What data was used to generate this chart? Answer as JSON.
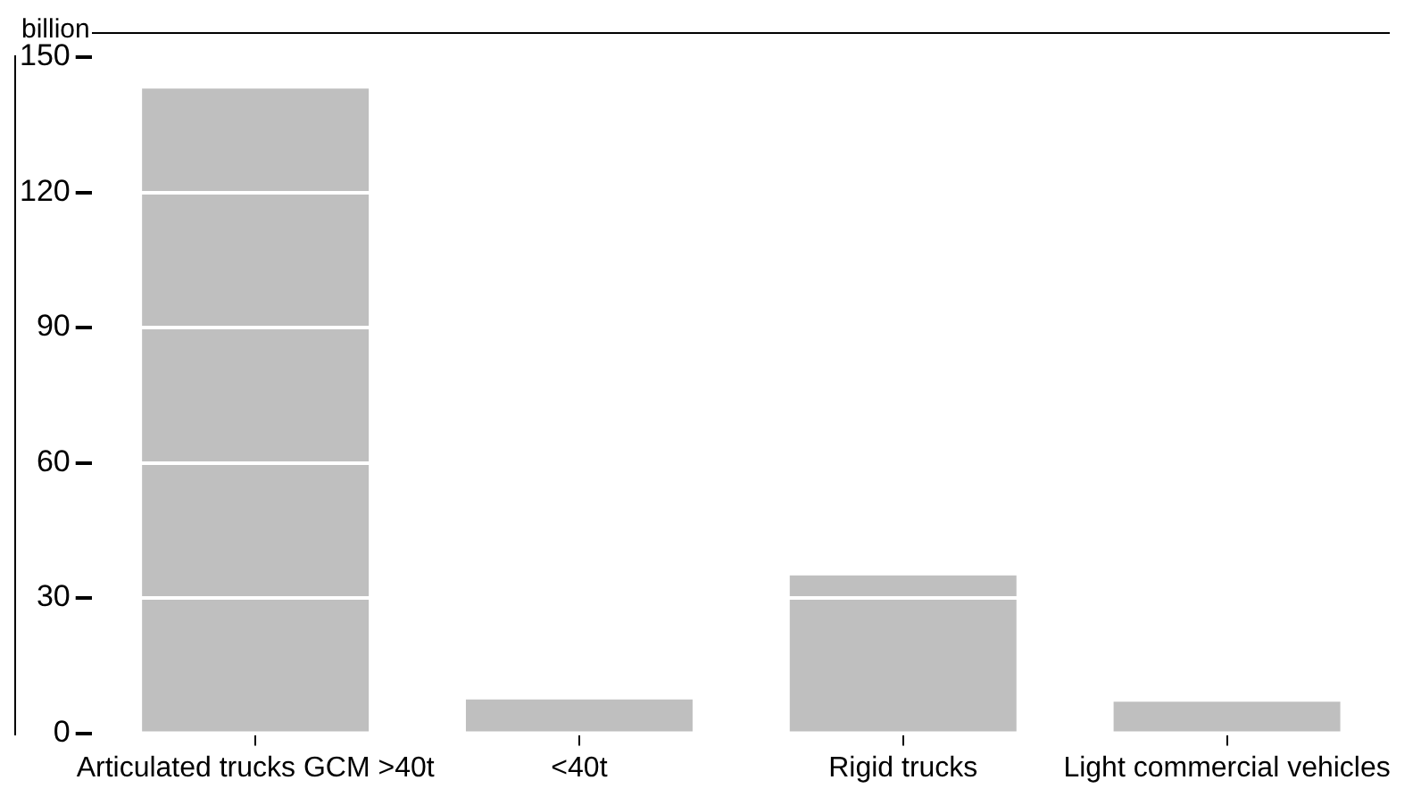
{
  "chart_data": {
    "type": "bar",
    "ylabel": "billion",
    "categories": [
      "Articulated trucks GCM >40t",
      "<40t",
      "Rigid trucks",
      "Light commercial vehicles"
    ],
    "values": [
      143,
      7.5,
      35,
      7
    ],
    "color": "#bfbfbf",
    "ylim": [
      0,
      150
    ],
    "yticks": [
      0,
      30,
      60,
      90,
      120,
      150
    ],
    "grid": "y",
    "legend": false
  }
}
